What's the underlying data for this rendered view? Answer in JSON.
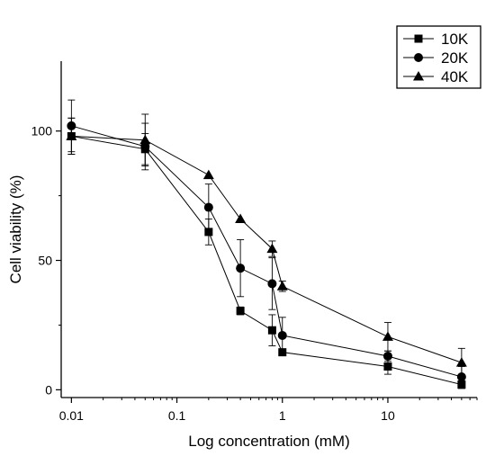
{
  "chart_data": {
    "type": "line",
    "xlabel": "Log concentration (mM)",
    "ylabel": "Cell viability (%)",
    "xscale": "log",
    "xlim": [
      0.008,
      70
    ],
    "ylim": [
      -3,
      127
    ],
    "x_ticks": [
      0.01,
      0.1,
      1,
      10
    ],
    "x_tick_labels": [
      "0.01",
      "0.1",
      "1",
      "10"
    ],
    "y_ticks": [
      0,
      50,
      100
    ],
    "y_tick_labels": [
      "0",
      "50",
      "100"
    ],
    "legend_position": "top-right",
    "grid": false,
    "series": [
      {
        "name": "10K",
        "marker": "square",
        "color": "#000000",
        "x": [
          0.01,
          0.05,
          0.2,
          0.4,
          0.8,
          1,
          10,
          50
        ],
        "y": [
          98,
          93,
          61,
          30.5,
          23,
          14.5,
          9,
          2
        ],
        "err": [
          7,
          6,
          5,
          1.5,
          6,
          0.5,
          3,
          1.5
        ]
      },
      {
        "name": "20K",
        "marker": "circle",
        "color": "#000000",
        "x": [
          0.01,
          0.05,
          0.2,
          0.4,
          0.8,
          1,
          10,
          50
        ],
        "y": [
          102,
          94,
          70.5,
          47,
          41,
          21,
          13,
          5
        ],
        "err": [
          10,
          9,
          9,
          11,
          10,
          7,
          2,
          4
        ]
      },
      {
        "name": "40K",
        "marker": "triangle",
        "color": "#000000",
        "x": [
          0.01,
          0.05,
          0.2,
          0.4,
          0.8,
          1,
          10,
          50
        ],
        "y": [
          98,
          96.5,
          83,
          66,
          54.5,
          40,
          20.5,
          10.5
        ],
        "err": [
          7,
          10,
          0,
          0,
          3,
          2,
          5.5,
          5.5
        ]
      }
    ]
  }
}
